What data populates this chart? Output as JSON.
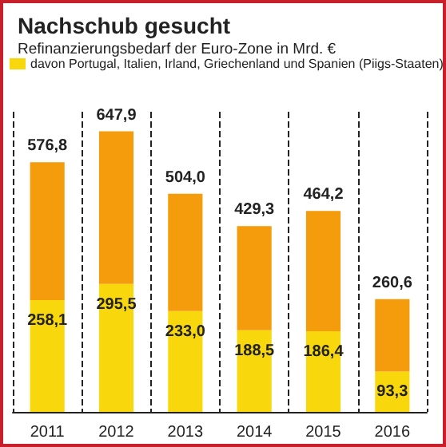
{
  "chart_data": {
    "type": "bar",
    "title": "Nachschub gesucht",
    "subtitle": "Refinanzierungsbedarf der Euro-Zone in Mrd. €",
    "categories": [
      "2011",
      "2012",
      "2013",
      "2014",
      "2015",
      "2016"
    ],
    "stacked": true,
    "series": [
      {
        "name": "davon Portugal, Italien, Irland, Griechenland und Spanien (Piigs-Staaten)",
        "color": "#f8d80c",
        "values": [
          258.1,
          295.5,
          233.0,
          188.5,
          186.4,
          93.3
        ],
        "value_labels": [
          "258,1",
          "295,5",
          "233,0",
          "188,5",
          "186,4",
          "93,3"
        ]
      },
      {
        "color": "#f59c0c",
        "values": [
          318.7,
          352.4,
          271.0,
          240.8,
          277.8,
          167.3
        ]
      }
    ],
    "totals": [
      "576,8",
      "647,9",
      "504,0",
      "429,3",
      "464,2",
      "260,6"
    ],
    "grid": "x",
    "legend": "top left"
  }
}
